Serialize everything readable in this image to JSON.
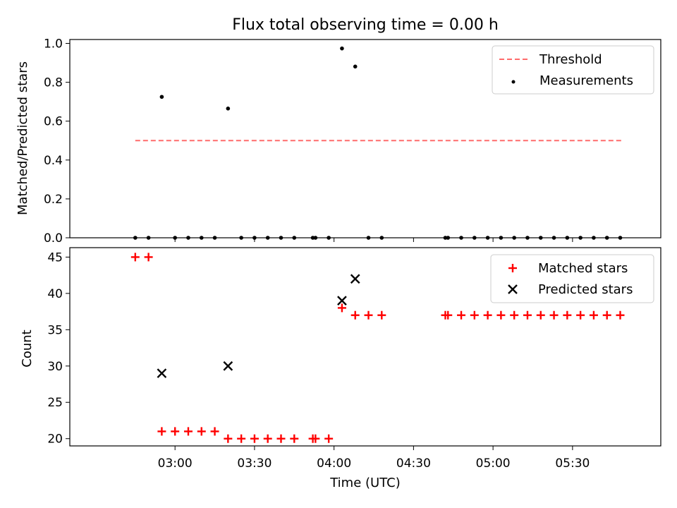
{
  "chart_data": {
    "title": "Flux total observing time = 0.00 h",
    "xlabel": "Time (UTC)",
    "x_ticks": [
      "03:00",
      "03:30",
      "04:00",
      "04:30",
      "05:00",
      "05:30"
    ],
    "panels": [
      {
        "type": "scatter",
        "ylabel": "Matched/Predicted stars",
        "ylim": [
          0,
          1.02
        ],
        "y_ticks": [
          "0.0",
          "0.2",
          "0.4",
          "0.6",
          "0.8",
          "1.0"
        ],
        "legend_position": "top-right",
        "threshold": {
          "name": "Threshold",
          "value": 0.5,
          "x_range": [
            "02:45",
            "05:49"
          ],
          "color": "#ff6b6b"
        },
        "measurements": {
          "name": "Measurements",
          "color": "#000000",
          "x": [
            "02:45",
            "02:50",
            "02:55",
            "03:00",
            "03:05",
            "03:10",
            "03:15",
            "03:20",
            "03:25",
            "03:30",
            "03:35",
            "03:40",
            "03:45",
            "03:52",
            "03:53",
            "03:58",
            "04:03",
            "04:08",
            "04:13",
            "04:18",
            "04:42",
            "04:43",
            "04:48",
            "04:53",
            "04:58",
            "05:03",
            "05:08",
            "05:13",
            "05:18",
            "05:23",
            "05:28",
            "05:33",
            "05:38",
            "05:43",
            "05:48"
          ],
          "y": [
            0,
            0,
            0.725,
            0,
            0,
            0,
            0,
            0.665,
            0,
            0,
            0,
            0,
            0,
            0,
            0,
            0,
            0.974,
            0.881,
            0,
            0,
            0,
            0,
            0,
            0,
            0,
            0,
            0,
            0,
            0,
            0,
            0,
            0,
            0,
            0,
            0
          ]
        }
      },
      {
        "type": "scatter",
        "ylabel": "Count",
        "ylim": [
          19,
          46.3
        ],
        "y_ticks": [
          "20",
          "25",
          "30",
          "35",
          "40",
          "45"
        ],
        "legend_position": "top-right",
        "matched": {
          "name": "Matched stars",
          "color": "#ff0000",
          "x": [
            "02:45",
            "02:50",
            "02:55",
            "03:00",
            "03:05",
            "03:10",
            "03:15",
            "03:20",
            "03:25",
            "03:30",
            "03:35",
            "03:40",
            "03:45",
            "03:52",
            "03:53",
            "03:58",
            "04:03",
            "04:08",
            "04:13",
            "04:18",
            "04:42",
            "04:43",
            "04:48",
            "04:53",
            "04:58",
            "05:03",
            "05:08",
            "05:13",
            "05:18",
            "05:23",
            "05:28",
            "05:33",
            "05:38",
            "05:43",
            "05:48"
          ],
          "y": [
            45,
            45,
            21,
            21,
            21,
            21,
            21,
            20,
            20,
            20,
            20,
            20,
            20,
            20,
            20,
            20,
            38,
            37,
            37,
            37,
            37,
            37,
            37,
            37,
            37,
            37,
            37,
            37,
            37,
            37,
            37,
            37,
            37,
            37,
            37
          ]
        },
        "predicted": {
          "name": "Predicted stars",
          "color": "#000000",
          "x": [
            "02:55",
            "03:20",
            "04:03",
            "04:08"
          ],
          "y": [
            29,
            30,
            39,
            42
          ]
        }
      }
    ]
  }
}
